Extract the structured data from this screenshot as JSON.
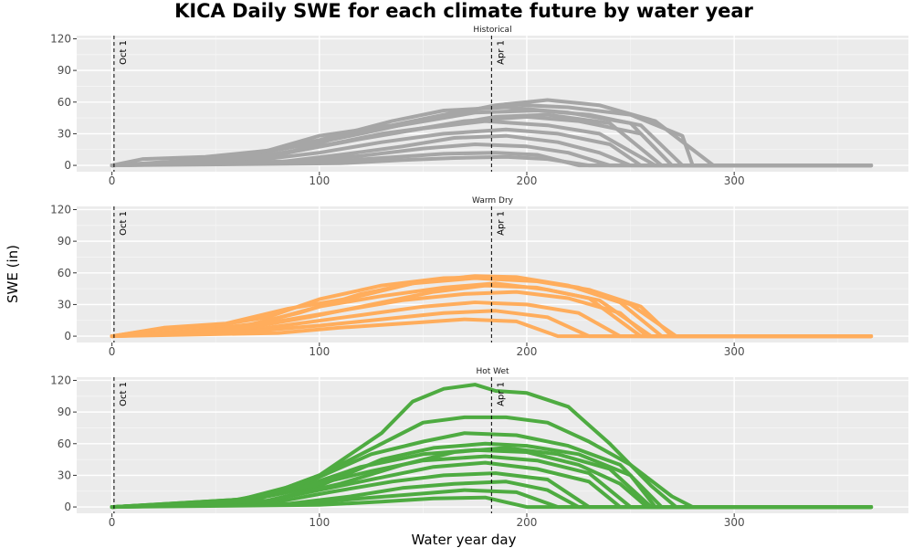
{
  "chart_data": {
    "type": "line",
    "title": "KICA Daily SWE for each climate future by water year",
    "xlabel": "Water year day",
    "ylabel": "SWE (in)",
    "xlim": [
      -17,
      384
    ],
    "ylim": [
      -6,
      123
    ],
    "x_ticks": [
      0,
      100,
      200,
      300
    ],
    "y_ticks": [
      0,
      30,
      60,
      90,
      120
    ],
    "grid": true,
    "legend": "none",
    "reference_lines": [
      {
        "x": 1,
        "label": "Oct 1",
        "style": "dashed"
      },
      {
        "x": 183,
        "label": "Apr 1",
        "style": "dashed"
      }
    ],
    "panels": [
      {
        "name": "Historical",
        "color": "#A6A6A6",
        "series": [
          {
            "x": [
              0,
              15,
              45,
              75,
              100,
              135,
              165,
              190,
              220,
              250,
              275,
              280,
              366
            ],
            "y": [
              0,
              6,
              8,
              14,
              28,
              38,
              50,
              58,
              55,
              48,
              28,
              0,
              0
            ]
          },
          {
            "x": [
              0,
              30,
              60,
              95,
              125,
              155,
              185,
              210,
              235,
              262,
              290,
              366
            ],
            "y": [
              0,
              3,
              8,
              20,
              32,
              45,
              57,
              62,
              57,
              42,
              0,
              0
            ]
          },
          {
            "x": [
              0,
              40,
              70,
              100,
              135,
              160,
              190,
              220,
              250,
              270,
              366
            ],
            "y": [
              0,
              5,
              12,
              24,
              42,
              52,
              55,
              50,
              40,
              0,
              0
            ]
          },
          {
            "x": [
              0,
              50,
              80,
              110,
              140,
              170,
              200,
              225,
              255,
              270,
              366
            ],
            "y": [
              0,
              4,
              10,
              22,
              32,
              42,
              46,
              42,
              30,
              0,
              0
            ]
          },
          {
            "x": [
              0,
              60,
              90,
              120,
              150,
              180,
              210,
              235,
              262,
              366
            ],
            "y": [
              0,
              6,
              14,
              25,
              35,
              42,
              38,
              30,
              0,
              0
            ]
          },
          {
            "x": [
              0,
              70,
              100,
              130,
              160,
              190,
              215,
              240,
              255,
              366
            ],
            "y": [
              0,
              5,
              12,
              22,
              30,
              34,
              30,
              20,
              0,
              0
            ]
          },
          {
            "x": [
              0,
              80,
              110,
              140,
              165,
              190,
              215,
              235,
              250,
              366
            ],
            "y": [
              0,
              3,
              10,
              18,
              26,
              28,
              22,
              12,
              0,
              0
            ]
          },
          {
            "x": [
              0,
              90,
              120,
              150,
              175,
              200,
              220,
              240,
              366
            ],
            "y": [
              0,
              4,
              9,
              16,
              20,
              18,
              12,
              0,
              0
            ]
          },
          {
            "x": [
              0,
              100,
              130,
              160,
              185,
              205,
              225,
              366
            ],
            "y": [
              0,
              3,
              7,
              11,
              12,
              10,
              0,
              0
            ]
          },
          {
            "x": [
              0,
              55,
              85,
              115,
              145,
              175,
              205,
              230,
              255,
              275,
              366
            ],
            "y": [
              0,
              4,
              12,
              30,
              40,
              50,
              52,
              48,
              38,
              0,
              0
            ]
          },
          {
            "x": [
              0,
              70,
              100,
              130,
              160,
              185,
              210,
              240,
              265,
              366
            ],
            "y": [
              0,
              8,
              18,
              30,
              38,
              46,
              48,
              40,
              0,
              0
            ]
          },
          {
            "x": [
              0,
              110,
              140,
              165,
              190,
              210,
              230,
              366
            ],
            "y": [
              0,
              2,
              5,
              7,
              8,
              6,
              0,
              0
            ]
          }
        ]
      },
      {
        "name": "Warm Dry",
        "color": "#FFAD5C",
        "series": [
          {
            "x": [
              0,
              20,
              50,
              75,
              100,
              130,
              160,
              180,
              200,
              225,
              250,
              272,
              366
            ],
            "y": [
              0,
              6,
              10,
              18,
              35,
              48,
              55,
              56,
              54,
              46,
              30,
              0,
              0
            ]
          },
          {
            "x": [
              0,
              30,
              60,
              90,
              120,
              150,
              175,
              195,
              220,
              245,
              265,
              366
            ],
            "y": [
              0,
              4,
              8,
              22,
              40,
              52,
              57,
              56,
              48,
              32,
              0,
              0
            ]
          },
          {
            "x": [
              0,
              40,
              70,
              100,
              130,
              160,
              185,
              210,
              235,
              260,
              366
            ],
            "y": [
              0,
              5,
              12,
              28,
              38,
              46,
              50,
              44,
              34,
              0,
              0
            ]
          },
          {
            "x": [
              0,
              50,
              80,
              110,
              140,
              170,
              195,
              220,
              245,
              258,
              366
            ],
            "y": [
              0,
              6,
              14,
              24,
              34,
              40,
              42,
              36,
              22,
              0,
              0
            ]
          },
          {
            "x": [
              0,
              60,
              90,
              120,
              150,
              175,
              200,
              225,
              245,
              366
            ],
            "y": [
              0,
              4,
              12,
              20,
              28,
              32,
              30,
              22,
              0,
              0
            ]
          },
          {
            "x": [
              0,
              70,
              100,
              130,
              160,
              185,
              210,
              230,
              366
            ],
            "y": [
              0,
              5,
              10,
              16,
              22,
              24,
              18,
              0,
              0
            ]
          },
          {
            "x": [
              0,
              80,
              110,
              140,
              170,
              195,
              215,
              366
            ],
            "y": [
              0,
              3,
              8,
              12,
              16,
              14,
              0,
              0
            ]
          },
          {
            "x": [
              0,
              25,
              55,
              85,
              115,
              145,
              175,
              205,
              230,
              255,
              270,
              366
            ],
            "y": [
              0,
              8,
              12,
              26,
              36,
              50,
              55,
              52,
              44,
              28,
              0,
              0
            ]
          },
          {
            "x": [
              0,
              65,
              95,
              125,
              155,
              180,
              205,
              230,
              255,
              366
            ],
            "y": [
              0,
              8,
              18,
              30,
              42,
              48,
              46,
              36,
              0,
              0
            ]
          }
        ]
      },
      {
        "name": "Hot Wet",
        "color": "#4EAB41",
        "series": [
          {
            "x": [
              0,
              70,
              100,
              130,
              145,
              160,
              175,
              185,
              200,
              220,
              240,
              260,
              272,
              366
            ],
            "y": [
              0,
              8,
              30,
              70,
              100,
              112,
              116,
              110,
              108,
              95,
              60,
              20,
              0,
              0
            ]
          },
          {
            "x": [
              0,
              70,
              100,
              130,
              150,
              170,
              190,
              210,
              230,
              250,
              270,
              280,
              366
            ],
            "y": [
              0,
              8,
              30,
              60,
              80,
              85,
              85,
              80,
              62,
              40,
              10,
              0,
              0
            ]
          },
          {
            "x": [
              0,
              60,
              95,
              125,
              150,
              170,
              195,
              220,
              245,
              265,
              366
            ],
            "y": [
              0,
              6,
              24,
              50,
              62,
              70,
              68,
              58,
              40,
              0,
              0
            ]
          },
          {
            "x": [
              0,
              65,
              100,
              130,
              155,
              180,
              200,
              225,
              250,
              262,
              366
            ],
            "y": [
              0,
              6,
              20,
              45,
              56,
              60,
              58,
              50,
              30,
              0,
              0
            ]
          },
          {
            "x": [
              0,
              55,
              90,
              120,
              150,
              175,
              200,
              225,
              245,
              258,
              366
            ],
            "y": [
              0,
              5,
              18,
              38,
              50,
              54,
              52,
              40,
              22,
              0,
              0
            ]
          },
          {
            "x": [
              0,
              60,
              95,
              125,
              150,
              180,
              205,
              230,
              250,
              366
            ],
            "y": [
              0,
              6,
              20,
              34,
              44,
              48,
              44,
              32,
              0,
              0
            ]
          },
          {
            "x": [
              0,
              70,
              100,
              130,
              155,
              180,
              205,
              230,
              245,
              366
            ],
            "y": [
              0,
              4,
              16,
              28,
              38,
              42,
              36,
              24,
              0,
              0
            ]
          },
          {
            "x": [
              0,
              80,
              105,
              135,
              160,
              185,
              210,
              230,
              366
            ],
            "y": [
              0,
              5,
              14,
              24,
              30,
              32,
              26,
              0,
              0
            ]
          },
          {
            "x": [
              0,
              85,
              115,
              140,
              165,
              190,
              210,
              225,
              366
            ],
            "y": [
              0,
              3,
              10,
              18,
              22,
              24,
              16,
              0,
              0
            ]
          },
          {
            "x": [
              0,
              90,
              120,
              145,
              170,
              195,
              215,
              366
            ],
            "y": [
              0,
              3,
              8,
              12,
              16,
              14,
              0,
              0
            ]
          },
          {
            "x": [
              0,
              100,
              130,
              155,
              180,
              200,
              366
            ],
            "y": [
              0,
              2,
              5,
              8,
              9,
              0,
              0
            ]
          },
          {
            "x": [
              0,
              75,
              110,
              140,
              165,
              190,
              215,
              240,
              260,
              366
            ],
            "y": [
              0,
              6,
              22,
              40,
              52,
              56,
              50,
              36,
              0,
              0
            ]
          }
        ]
      }
    ]
  }
}
